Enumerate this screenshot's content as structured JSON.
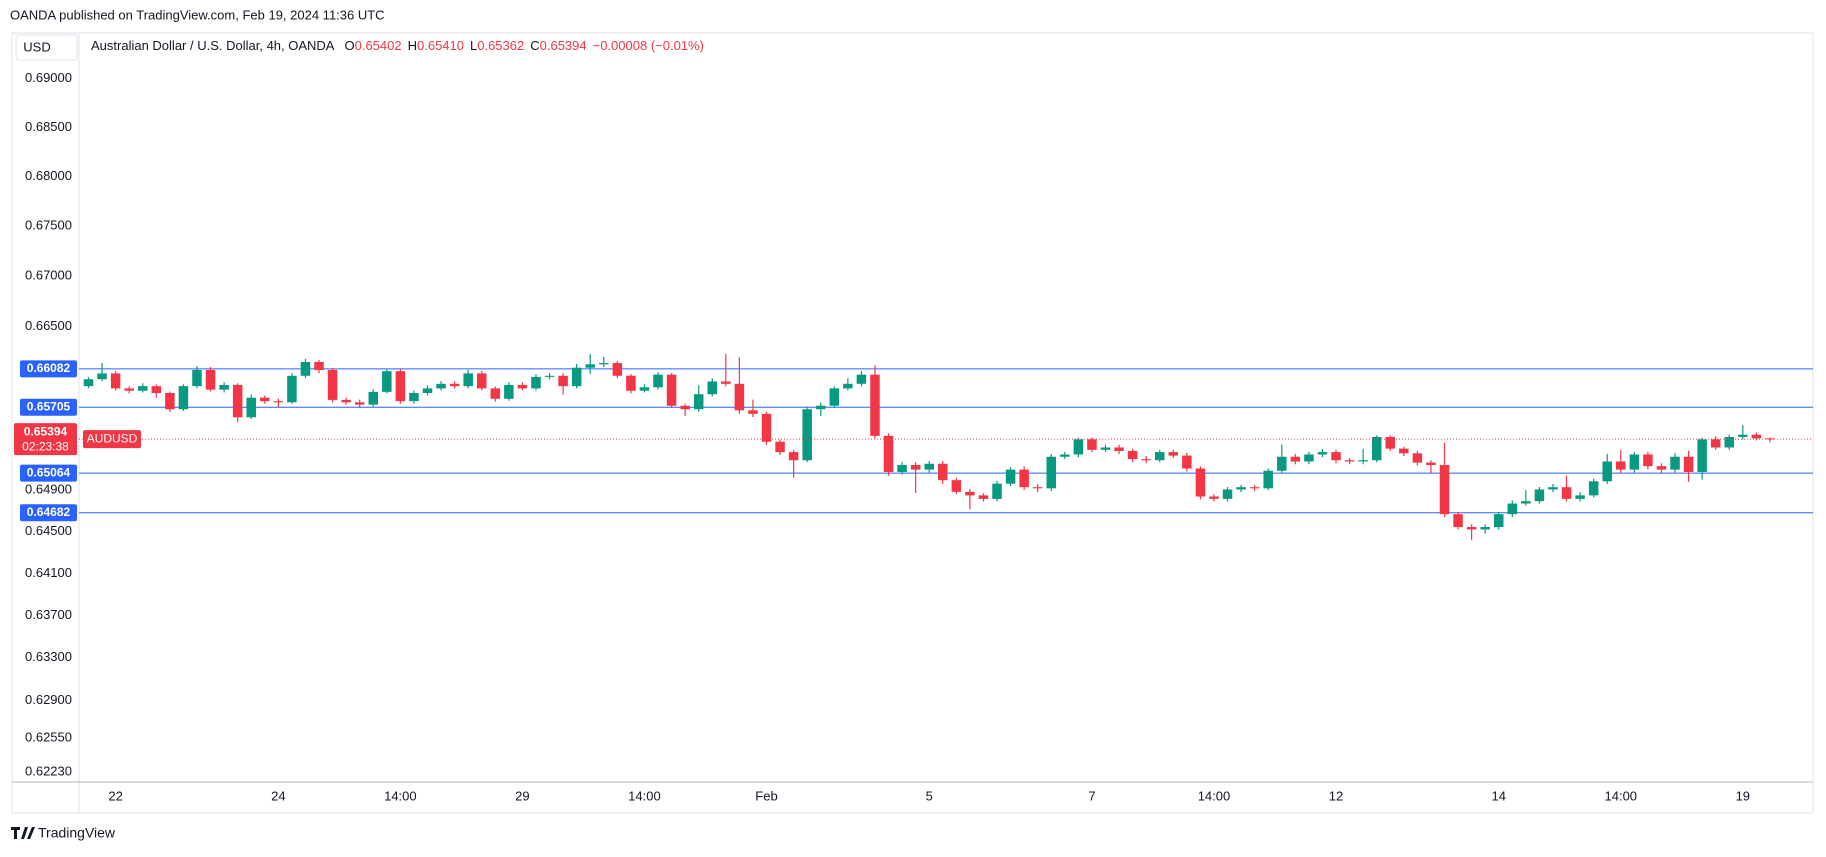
{
  "chart_data": {
    "type": "candlestick",
    "published": "OANDA published on TradingView.com, Feb 19, 2024 11:36 UTC",
    "currency": "USD",
    "symbol_title": "Australian Dollar / U.S. Dollar, 4h, OANDA",
    "legend": [
      {
        "key": "O",
        "value": "0.65402"
      },
      {
        "key": "H",
        "value": "0.65410"
      },
      {
        "key": "L",
        "value": "0.65362"
      },
      {
        "key": "C",
        "value": "0.65394"
      }
    ],
    "change": "−0.00008 (−0.01%)",
    "brand": "TradingView",
    "log": true,
    "grid": false,
    "up_color": "#089981",
    "down_color": "#f23645",
    "level_color": "#2962ff",
    "ylim": [
      0.6214,
      0.6947
    ],
    "yticks": [
      {
        "value": 0.69,
        "label": "0.69000"
      },
      {
        "value": 0.685,
        "label": "0.68500"
      },
      {
        "value": 0.68,
        "label": "0.68000"
      },
      {
        "value": 0.675,
        "label": "0.67500"
      },
      {
        "value": 0.67,
        "label": "0.67000"
      },
      {
        "value": 0.665,
        "label": "0.66500"
      },
      {
        "value": 0.649,
        "label": "0.64900"
      },
      {
        "value": 0.645,
        "label": "0.64500"
      },
      {
        "value": 0.641,
        "label": "0.64100"
      },
      {
        "value": 0.637,
        "label": "0.63700"
      },
      {
        "value": 0.633,
        "label": "0.63300"
      },
      {
        "value": 0.629,
        "label": "0.62900"
      },
      {
        "value": 0.6255,
        "label": "0.62550"
      },
      {
        "value": 0.6223,
        "label": "0.62230"
      }
    ],
    "levels": [
      0.66082,
      0.65705,
      0.65064,
      0.64682
    ],
    "last_price": 0.65394,
    "countdown": "02:23:38",
    "symbol_tag": "AUDUSD",
    "categories": [
      null,
      null,
      "22",
      null,
      null,
      null,
      null,
      null,
      null,
      null,
      null,
      null,
      null,
      null,
      "24",
      null,
      null,
      null,
      null,
      null,
      null,
      null,
      null,
      "14:00",
      null,
      null,
      null,
      null,
      null,
      null,
      null,
      null,
      "29",
      null,
      null,
      null,
      null,
      null,
      null,
      null,
      null,
      "14:00",
      null,
      null,
      null,
      null,
      null,
      null,
      null,
      null,
      "Feb",
      null,
      null,
      null,
      null,
      null,
      null,
      null,
      null,
      null,
      null,
      null,
      "5",
      null,
      null,
      null,
      null,
      null,
      null,
      null,
      null,
      null,
      null,
      null,
      "7",
      null,
      null,
      null,
      null,
      null,
      null,
      null,
      null,
      "14:00",
      null,
      null,
      null,
      null,
      null,
      null,
      null,
      null,
      "12",
      null,
      null,
      null,
      null,
      null,
      null,
      null,
      null,
      null,
      null,
      null,
      "14",
      null,
      null,
      null,
      null,
      null,
      null,
      null,
      null,
      "14:00",
      null,
      null,
      null,
      null,
      null,
      null,
      null,
      null,
      "19",
      null,
      null
    ],
    "open": [
      0.65912,
      0.6598,
      0.66037,
      0.6589,
      0.65867,
      0.65912,
      0.65845,
      0.65686,
      0.65912,
      0.66071,
      0.65878,
      0.65924,
      0.65607,
      0.65799,
      0.65765,
      0.65754,
      0.66014,
      0.6615,
      0.66071,
      0.65777,
      0.65754,
      0.65731,
      0.65856,
      0.66059,
      0.65765,
      0.65845,
      0.6589,
      0.65935,
      0.65912,
      0.66037,
      0.6589,
      0.65788,
      0.65924,
      0.6589,
      0.66003,
      0.66014,
      0.65912,
      0.66093,
      0.66127,
      0.66139,
      0.66014,
      0.65867,
      0.65901,
      0.66025,
      0.6572,
      0.65686,
      0.65833,
      0.65958,
      0.65935,
      0.65675,
      0.65641,
      0.65369,
      0.65268,
      0.65189,
      0.65686,
      0.6572,
      0.6589,
      0.65935,
      0.66025,
      0.65426,
      0.65075,
      0.65143,
      0.65098,
      0.65155,
      0.64996,
      0.64883,
      0.64849,
      0.64815,
      0.64962,
      0.65098,
      0.64928,
      0.64917,
      0.65223,
      0.65245,
      0.65392,
      0.6529,
      0.65313,
      0.65279,
      0.652,
      0.65189,
      0.65268,
      0.65234,
      0.65109,
      0.64838,
      0.64815,
      0.64906,
      0.64928,
      0.64917,
      0.65087,
      0.65223,
      0.65177,
      0.65245,
      0.65268,
      0.65189,
      0.65177,
      0.65189,
      0.65415,
      0.65302,
      0.65256,
      0.65166,
      0.65143,
      0.64668,
      0.64544,
      0.64521,
      0.64544,
      0.64668,
      0.6477,
      0.64793,
      0.64906,
      0.64928,
      0.64815,
      0.64849,
      0.64985,
      0.65177,
      0.65098,
      0.65245,
      0.65132,
      0.65098,
      0.65223,
      0.65075,
      0.65392,
      0.65313,
      0.65415,
      0.65437,
      0.65402
    ],
    "high": [
      0.66,
      0.66139,
      0.6606,
      0.6591,
      0.6594,
      0.6593,
      0.6586,
      0.6593,
      0.6611,
      0.661,
      0.6595,
      0.6594,
      0.6583,
      0.6582,
      0.6579,
      0.6604,
      0.6618,
      0.6617,
      0.6609,
      0.658,
      0.6578,
      0.6588,
      0.6608,
      0.6608,
      0.6587,
      0.6592,
      0.6596,
      0.6596,
      0.6607,
      0.6606,
      0.6591,
      0.6595,
      0.6595,
      0.6603,
      0.6604,
      0.6604,
      0.6613,
      0.6623,
      0.662,
      0.6616,
      0.6603,
      0.6593,
      0.6605,
      0.6604,
      0.6574,
      0.6592,
      0.6599,
      0.66229,
      0.66195,
      0.6578,
      0.6566,
      0.6539,
      0.6529,
      0.6571,
      0.6575,
      0.6591,
      0.6599,
      0.6606,
      0.66116,
      0.6545,
      0.6517,
      0.6517,
      0.6518,
      0.6518,
      0.6502,
      0.6491,
      0.6487,
      0.6499,
      0.6512,
      0.6513,
      0.6496,
      0.6525,
      0.6527,
      0.6541,
      0.6541,
      0.6534,
      0.6534,
      0.653,
      0.6523,
      0.6529,
      0.6529,
      0.6526,
      0.6513,
      0.6486,
      0.6493,
      0.6495,
      0.6495,
      0.6511,
      0.6534,
      0.6525,
      0.6527,
      0.653,
      0.6529,
      0.6521,
      0.653,
      0.6543,
      0.6543,
      0.6532,
      0.6528,
      0.6519,
      0.65358,
      0.6469,
      0.6457,
      0.6457,
      0.6469,
      0.648,
      0.649,
      0.6493,
      0.6496,
      0.6504,
      0.6488,
      0.6501,
      0.6525,
      0.6529,
      0.6527,
      0.6527,
      0.6516,
      0.6526,
      0.6528,
      0.6541,
      0.6542,
      0.6544,
      0.6553,
      0.6546,
      0.6541
    ],
    "low": [
      0.6589,
      0.6596,
      0.6587,
      0.6584,
      0.6585,
      0.658,
      0.6566,
      0.6567,
      0.6589,
      0.6586,
      0.6585,
      0.6556,
      0.6559,
      0.6574,
      0.657,
      0.6574,
      0.6599,
      0.6604,
      0.6575,
      0.6573,
      0.657,
      0.6571,
      0.6584,
      0.6574,
      0.6574,
      0.6582,
      0.6587,
      0.6589,
      0.6589,
      0.6587,
      0.6576,
      0.6577,
      0.6587,
      0.6587,
      0.6598,
      0.6583,
      0.6589,
      0.6603,
      0.661,
      0.6599,
      0.6584,
      0.6585,
      0.6588,
      0.657,
      0.6562,
      0.6566,
      0.6581,
      0.6591,
      0.6564,
      0.6561,
      0.6534,
      0.6524,
      0.6502,
      0.6517,
      0.6562,
      0.657,
      0.6587,
      0.6591,
      0.654,
      0.6504,
      0.6505,
      0.64872,
      0.6507,
      0.6496,
      0.6486,
      0.64713,
      0.6479,
      0.6479,
      0.6494,
      0.649,
      0.6488,
      0.6489,
      0.652,
      0.6522,
      0.6527,
      0.6527,
      0.6525,
      0.6517,
      0.6516,
      0.6517,
      0.6521,
      0.6508,
      0.6481,
      0.6479,
      0.6479,
      0.6488,
      0.6489,
      0.649,
      0.6506,
      0.6515,
      0.6515,
      0.6522,
      0.6516,
      0.6515,
      0.6515,
      0.6517,
      0.6528,
      0.6523,
      0.6514,
      0.6506,
      0.6464,
      0.6452,
      0.6442,
      0.6448,
      0.6452,
      0.6464,
      0.6475,
      0.6477,
      0.6488,
      0.6479,
      0.6479,
      0.6483,
      0.6496,
      0.6507,
      0.6507,
      0.651,
      0.6506,
      0.6507,
      0.6498,
      0.65,
      0.6529,
      0.6529,
      0.6539,
      0.6538,
      0.65362
    ],
    "close": [
      0.6598,
      0.66037,
      0.6589,
      0.65867,
      0.65912,
      0.65845,
      0.65686,
      0.65912,
      0.66071,
      0.65878,
      0.65924,
      0.65607,
      0.65799,
      0.65765,
      0.65754,
      0.66014,
      0.6615,
      0.66071,
      0.65777,
      0.65754,
      0.65731,
      0.65856,
      0.66059,
      0.65765,
      0.65845,
      0.6589,
      0.65935,
      0.65912,
      0.66037,
      0.6589,
      0.65788,
      0.65924,
      0.6589,
      0.66003,
      0.66014,
      0.65912,
      0.66093,
      0.66127,
      0.66139,
      0.66014,
      0.65867,
      0.65901,
      0.66025,
      0.6572,
      0.65686,
      0.65833,
      0.65958,
      0.65935,
      0.65675,
      0.65641,
      0.65369,
      0.65268,
      0.65189,
      0.65686,
      0.6572,
      0.6589,
      0.65935,
      0.66025,
      0.65426,
      0.65075,
      0.65143,
      0.65098,
      0.65155,
      0.64996,
      0.64883,
      0.64849,
      0.64815,
      0.64962,
      0.65098,
      0.64928,
      0.64917,
      0.65223,
      0.65245,
      0.65392,
      0.6529,
      0.65313,
      0.65279,
      0.652,
      0.65189,
      0.65268,
      0.65234,
      0.65109,
      0.64838,
      0.64815,
      0.64906,
      0.64928,
      0.64917,
      0.65087,
      0.65223,
      0.65177,
      0.65245,
      0.65268,
      0.65189,
      0.65177,
      0.65189,
      0.65415,
      0.65302,
      0.65256,
      0.65166,
      0.65143,
      0.64668,
      0.64544,
      0.64521,
      0.64544,
      0.64668,
      0.6477,
      0.64793,
      0.64906,
      0.64928,
      0.64815,
      0.64849,
      0.64985,
      0.65177,
      0.65098,
      0.65245,
      0.65132,
      0.65098,
      0.65223,
      0.65075,
      0.65392,
      0.65313,
      0.65415,
      0.65437,
      0.65402,
      0.65394
    ]
  }
}
